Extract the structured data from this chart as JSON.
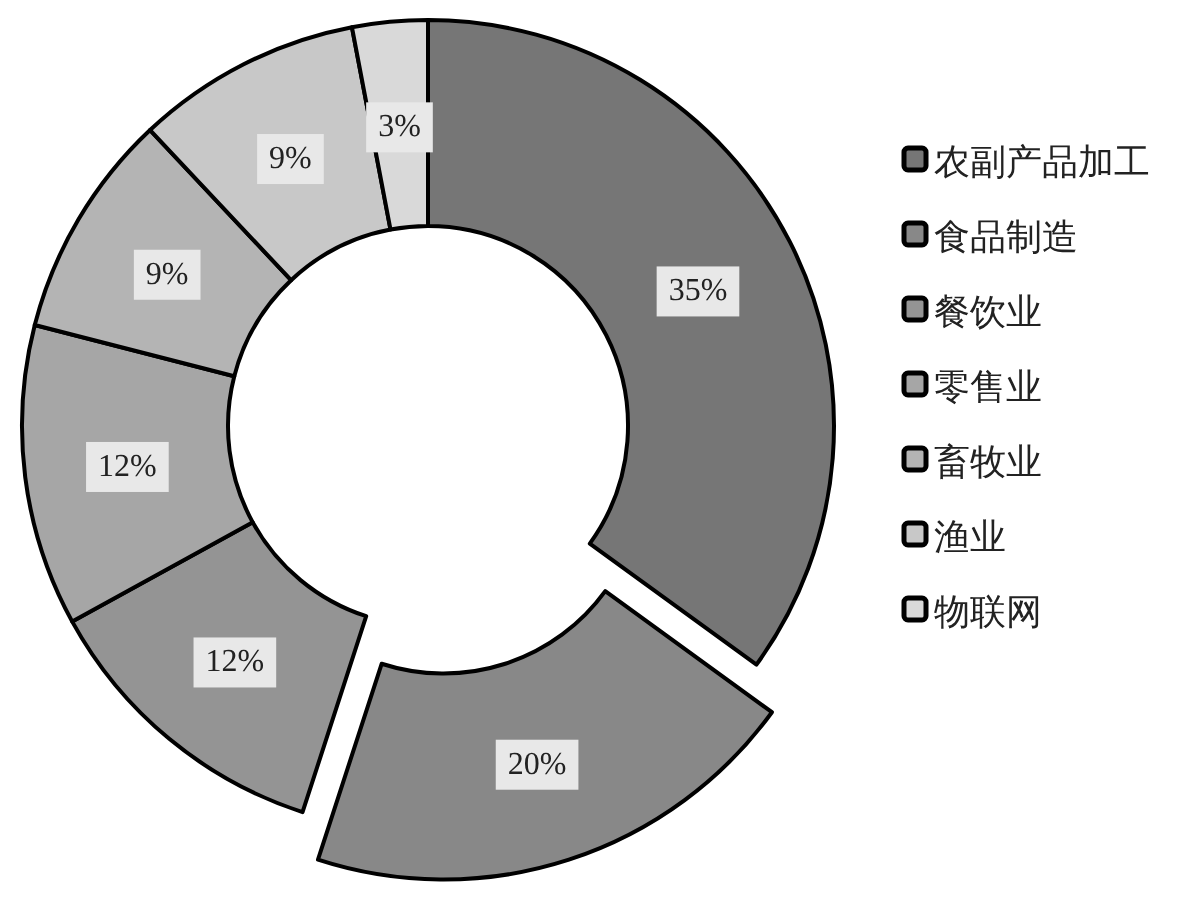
{
  "chart_data": {
    "type": "donut",
    "categories": [
      "农副产品加工",
      "食品制造",
      "餐饮业",
      "零售业",
      "畜牧业",
      "渔业",
      "物联网"
    ],
    "values": [
      35,
      20,
      12,
      12,
      9,
      9,
      3
    ],
    "colors": [
      "#767676",
      "#888888",
      "#949494",
      "#a6a6a6",
      "#b4b4b4",
      "#c8c8c8",
      "#d9d9d9"
    ],
    "value_labels": [
      "35%",
      "20%",
      "12%",
      "12%",
      "9%",
      "9%",
      "3%"
    ],
    "legend": "right"
  }
}
